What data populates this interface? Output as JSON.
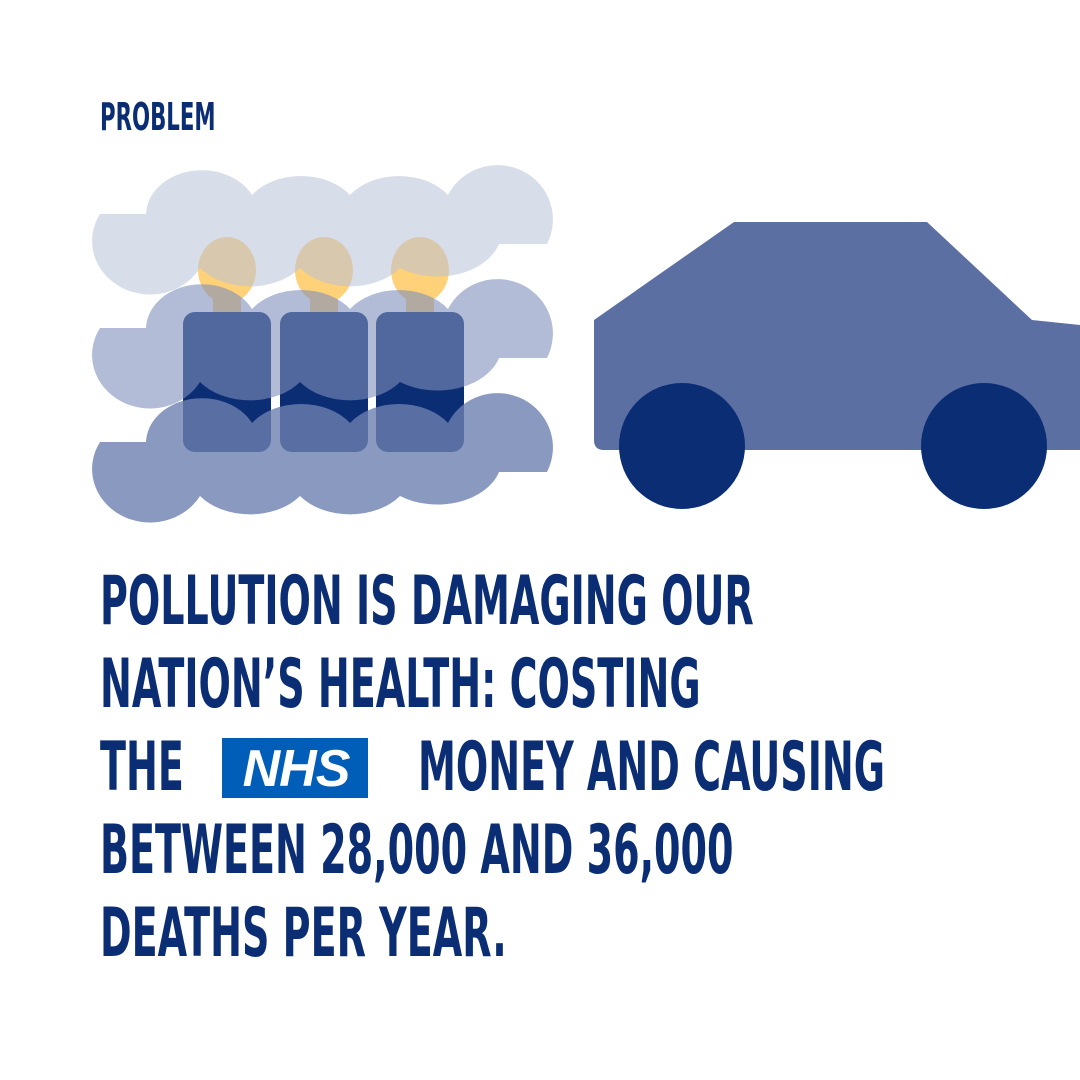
{
  "label": "PROBLEM",
  "headline": {
    "line1": "POLLUTION IS DAMAGING OUR",
    "line2": "NATION’S HEALTH: COSTING",
    "line3_before": "THE",
    "line3_after": "MONEY AND CAUSING",
    "line4": "BETWEEN 28,000 AND 36,000",
    "line5": "DEATHS PER YEAR."
  },
  "logo": {
    "text": "NHS"
  },
  "colors": {
    "navy": "#0a2d74",
    "car_body": "#5b6fa3",
    "nhs_blue": "#005eb8",
    "head": "#ffd27a"
  },
  "icons": [
    "smog-cloud-icon",
    "people-icon",
    "car-icon",
    "nhs-logo-icon"
  ]
}
